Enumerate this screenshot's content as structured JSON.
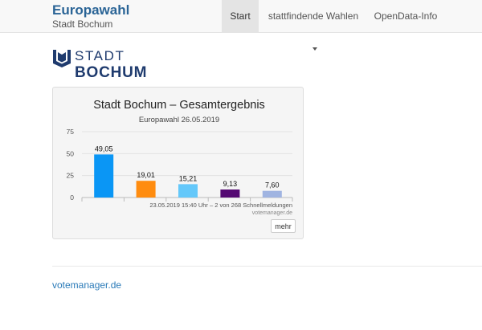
{
  "header": {
    "title": "Europawahl",
    "subtitle": "Stadt Bochum",
    "nav": {
      "start": "Start",
      "wahlen": "stattfindende Wahlen",
      "opendata": "OpenData-Info"
    }
  },
  "logo": {
    "line1": "STADT",
    "line2": "BOCHUM"
  },
  "chart_data": {
    "type": "bar",
    "title": "Stadt Bochum – Gesamtergebnis",
    "subtitle": "Europawahl 26.05.2019",
    "values": [
      49.05,
      19.01,
      15.21,
      9.13,
      7.6
    ],
    "value_labels": [
      "49,05",
      "19,01",
      "15,21",
      "9,13",
      "7,60"
    ],
    "colors": [
      "#0a96f5",
      "#ff8c0f",
      "#64c8fa",
      "#550a73",
      "#a0b4e1"
    ],
    "ylim": [
      0,
      75
    ],
    "yticks": [
      0,
      25,
      50,
      75
    ],
    "grid": true,
    "note": "23.05.2019 15:40 Uhr – 2 von 268 Schnellmeldungen",
    "credit": "votemanager.de"
  },
  "panel": {
    "more_label": "mehr"
  },
  "footer": {
    "link": "votemanager.de"
  }
}
